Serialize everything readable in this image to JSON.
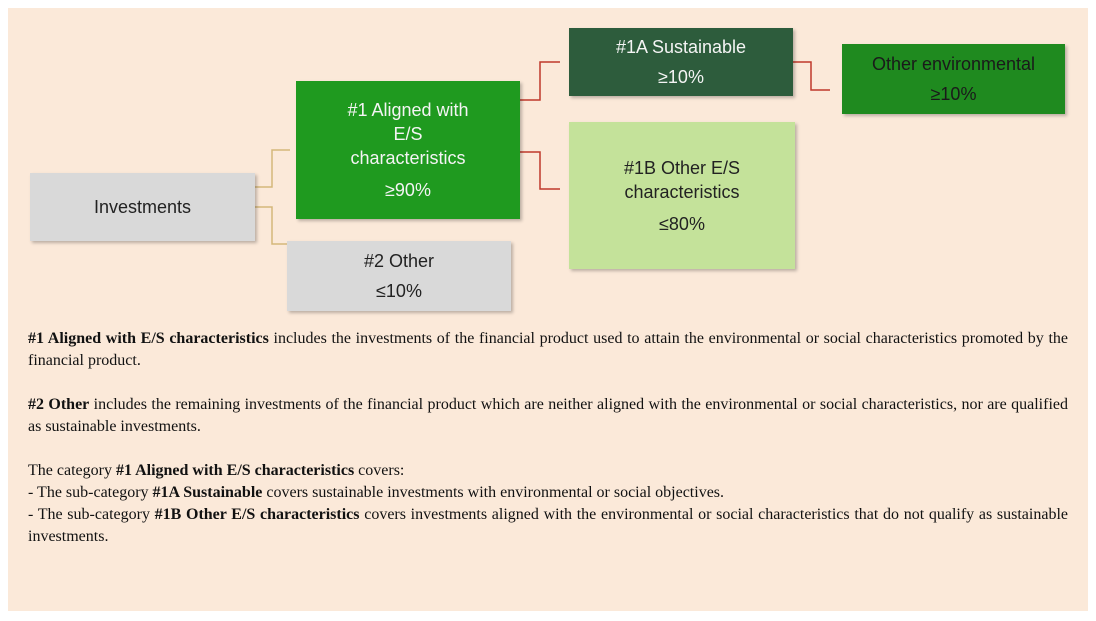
{
  "boxes": {
    "investments": {
      "label": "Investments"
    },
    "aligned": {
      "label": "#1 Aligned with E/S characteristics",
      "share": "≥90%"
    },
    "other": {
      "label": "#2 Other",
      "share": "≤10%"
    },
    "sustainable": {
      "label": "#1A Sustainable",
      "share": "≥10%"
    },
    "other_es": {
      "label": "#1B Other E/S characteristics",
      "share": "≤80%"
    },
    "other_env": {
      "label": "Other environmental",
      "share": "≥10%"
    }
  },
  "notes": [
    [
      [
        {
          "text": "#1 Aligned with E/S characteristics",
          "bold": true
        },
        {
          "text": " includes the investments of the financial product used to attain the environmental or social characteristics promoted by the financial product."
        }
      ]
    ],
    [
      [
        {
          "text": "#2 Other",
          "bold": true
        },
        {
          "text": " includes the remaining investments of the financial product which are neither aligned with the environmental or social characteristics, nor are qualified as sustainable investments."
        }
      ]
    ],
    [
      [
        {
          "text": "The category "
        },
        {
          "text": "#1 Aligned with E/S characteristics",
          "bold": true
        },
        {
          "text": " covers:"
        }
      ],
      [
        {
          "text": "- The sub-category "
        },
        {
          "text": "#1A Sustainable",
          "bold": true
        },
        {
          "text": " covers sustainable investments with environmental or social objectives."
        }
      ],
      [
        {
          "text": "- The sub-category "
        },
        {
          "text": "#1B Other E/S characteristics",
          "bold": true
        },
        {
          "text": " covers investments aligned with the environmental or social characteristics that do not qualify as sustainable investments."
        }
      ]
    ]
  ]
}
